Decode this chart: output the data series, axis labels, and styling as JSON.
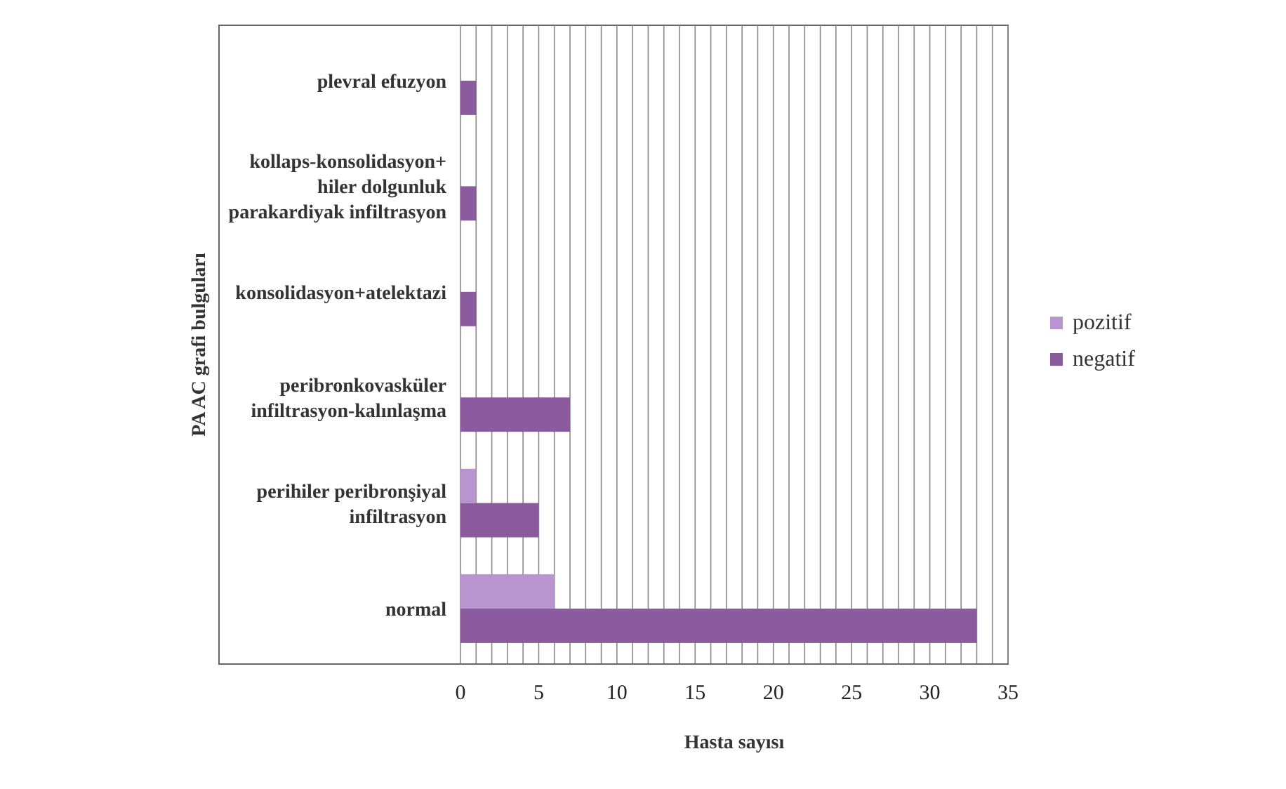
{
  "chart_data": {
    "type": "bar",
    "orientation": "horizontal",
    "categories": [
      "plevral efuzyon",
      "kollaps-konsolidasyon+\nhiler dolgunluk\nparakardiyak infiltrasyon",
      "konsolidasyon+atelektazi",
      "peribronkovasküler\ninfiltrasyon-kalınlaşma",
      "perihiler peribronşiyal\ninfiltrasyon",
      "normal"
    ],
    "series": [
      {
        "name": "pozitif",
        "color": "#b995cf",
        "values": [
          0,
          0,
          0,
          0,
          1,
          6
        ]
      },
      {
        "name": "negatif",
        "color": "#8b5a9f",
        "values": [
          1,
          1,
          1,
          7,
          5,
          33
        ]
      }
    ],
    "xlabel": "Hasta sayısı",
    "ylabel": "PA AC grafi bulguları",
    "xlim": [
      0,
      35
    ],
    "xticks": [
      0,
      {
        "value": 1,
        "label": null
      },
      {
        "value": 2,
        "label": null
      },
      {
        "value": 3,
        "label": null
      },
      {
        "value": 4,
        "label": null
      },
      5,
      {
        "value": 6,
        "label": null
      },
      {
        "value": 7,
        "label": null
      },
      {
        "value": 8,
        "label": null
      },
      {
        "value": 9,
        "label": null
      },
      10,
      {
        "value": 11,
        "label": null
      },
      {
        "value": 12,
        "label": null
      },
      {
        "value": 13,
        "label": null
      },
      {
        "value": 14,
        "label": null
      },
      15,
      {
        "value": 16,
        "label": null
      },
      {
        "value": 17,
        "label": null
      },
      {
        "value": 18,
        "label": null
      },
      {
        "value": 19,
        "label": null
      },
      20,
      {
        "value": 21,
        "label": null
      },
      {
        "value": 22,
        "label": null
      },
      {
        "value": 23,
        "label": null
      },
      {
        "value": 24,
        "label": null
      },
      25,
      {
        "value": 26,
        "label": null
      },
      {
        "value": 27,
        "label": null
      },
      {
        "value": 28,
        "label": null
      },
      {
        "value": 29,
        "label": null
      },
      30,
      {
        "value": 31,
        "label": null
      },
      {
        "value": 32,
        "label": null
      },
      {
        "value": 33,
        "label": null
      },
      {
        "value": 34,
        "label": null
      },
      35
    ],
    "grid": "x",
    "legend": "right"
  }
}
